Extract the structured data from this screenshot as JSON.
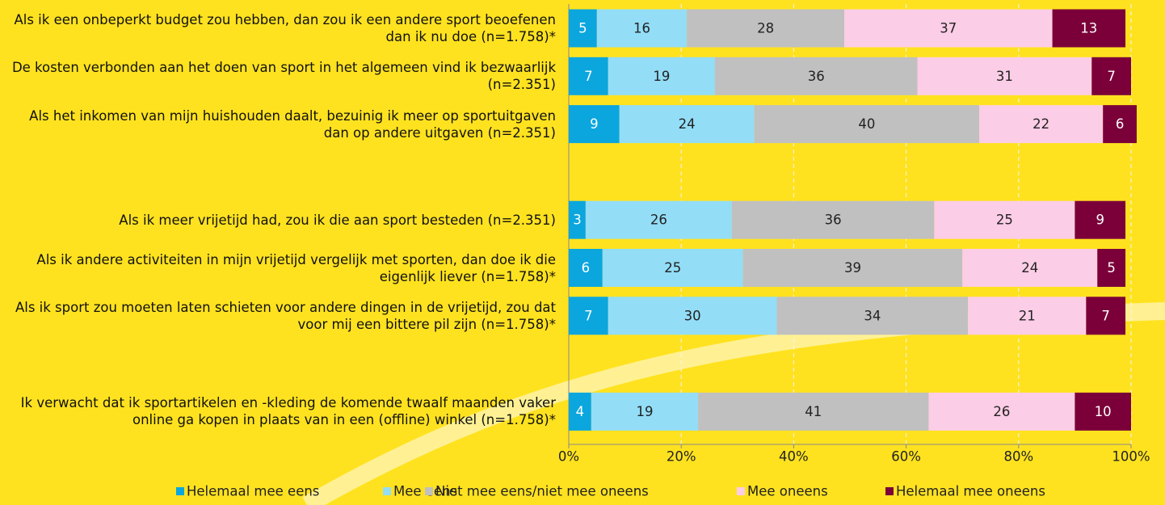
{
  "chart_data": {
    "type": "stacked_barh",
    "categories": [
      "Als ik een onbeperkt budget zou hebben, dan zou ik een andere sport beoefenen dan ik nu doe (n=1.758)*",
      "De kosten verbonden aan het doen van sport in het algemeen vind ik bezwaarlijk (n=2.351)",
      "Als het inkomen van mijn huishouden daalt, bezuinig ik meer op sportuitgaven dan op andere uitgaven (n=2.351)",
      null,
      "Als ik meer vrijetijd had, zou ik die aan sport besteden (n=2.351)",
      "Als ik andere activiteiten in mijn vrijetijd vergelijk met sporten, dan doe ik die eigenlijk liever (n=1.758)*",
      "Als ik sport zou moeten laten schieten voor andere dingen in de vrijetijd, zou dat voor mij een bittere pil zijn (n=1.758)*",
      null,
      "Ik verwacht dat ik sportartikelen en -kleding de komende twaalf maanden vaker online ga kopen in plaats van in een (offline) winkel (n=1.758)*"
    ],
    "series": [
      {
        "name": "Helemaal mee eens",
        "color": "#0ba6de",
        "values": [
          5,
          7,
          9,
          null,
          3,
          6,
          7,
          null,
          4
        ]
      },
      {
        "name": "Mee eens",
        "color": "#93ddf7",
        "values": [
          16,
          19,
          24,
          null,
          26,
          25,
          30,
          null,
          19
        ]
      },
      {
        "name": "Niet mee eens/niet mee oneens",
        "color": "#c0c0c0",
        "values": [
          28,
          36,
          40,
          null,
          36,
          39,
          34,
          null,
          41
        ]
      },
      {
        "name": "Mee oneens",
        "color": "#fccde6",
        "values": [
          37,
          31,
          22,
          null,
          25,
          24,
          21,
          null,
          26
        ]
      },
      {
        "name": "Helemaal mee oneens",
        "color": "#7b0039",
        "values": [
          13,
          7,
          6,
          null,
          9,
          5,
          7,
          null,
          10
        ]
      }
    ],
    "xlim": [
      0,
      100
    ],
    "xticks": [
      {
        "value": 0,
        "label": "0%"
      },
      {
        "value": 20,
        "label": "20%"
      },
      {
        "value": 40,
        "label": "40%"
      },
      {
        "value": 60,
        "label": "60%"
      },
      {
        "value": 80,
        "label": "80%"
      },
      {
        "value": 100,
        "label": "100%"
      }
    ],
    "grid": true,
    "legend": "bottom"
  }
}
